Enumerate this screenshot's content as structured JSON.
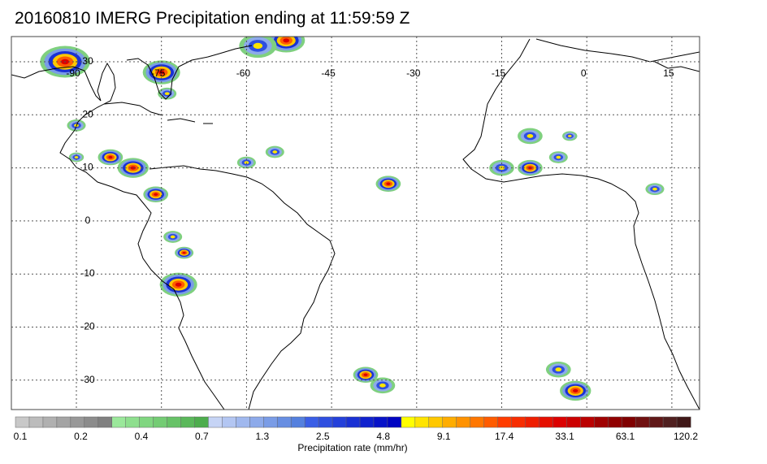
{
  "title": "20160810 IMERG Precipitation ending at 11:59:59 Z",
  "map": {
    "lon_labels": [
      "-90",
      "-75",
      "-60",
      "-45",
      "-30",
      "-15",
      "0",
      "15"
    ],
    "lat_labels": [
      "30",
      "20",
      "10",
      "0",
      "-10",
      "-20",
      "-30"
    ],
    "gridlines": "dotted"
  },
  "colorbar": {
    "title": "Precipitation rate (mm/hr)",
    "tick_labels": [
      "0.1",
      "0.2",
      "0.4",
      "0.7",
      "1.3",
      "2.5",
      "4.8",
      "9.1",
      "17.4",
      "33.1",
      "63.1",
      "120.2"
    ],
    "colors": [
      "#c8c8c8",
      "#bcbcbc",
      "#b0b0b0",
      "#a4a4a4",
      "#989898",
      "#8c8c8c",
      "#808080",
      "#9be89b",
      "#8edf8e",
      "#80d680",
      "#74cc74",
      "#67c267",
      "#5ab85a",
      "#4dad4d",
      "#c6d4f5",
      "#b3c6f2",
      "#a0b8ee",
      "#8daaea",
      "#7a9ce6",
      "#678ee2",
      "#5480de",
      "#3a5ee6",
      "#2f4fe0",
      "#2440da",
      "#1a31d4",
      "#1022ce",
      "#0813c8",
      "#0004c2",
      "#ffff00",
      "#ffe400",
      "#ffc800",
      "#ffad00",
      "#ff9200",
      "#ff7700",
      "#ff5c00",
      "#ff3c00",
      "#f72d00",
      "#ee1e00",
      "#e50f00",
      "#dc0000",
      "#cc0000",
      "#bb0000",
      "#a00000",
      "#900000",
      "#800000",
      "#701010",
      "#601818",
      "#502020",
      "#401818"
    ]
  },
  "precip_cells": [
    {
      "lon": -92,
      "lat": 30,
      "r": 4,
      "level": "heavy"
    },
    {
      "lon": -75,
      "lat": 28,
      "r": 3,
      "level": "heavy"
    },
    {
      "lon": -53,
      "lat": 34,
      "r": 3,
      "level": "heavy"
    },
    {
      "lon": -58,
      "lat": 33,
      "r": 3,
      "level": "moderate"
    },
    {
      "lon": -74,
      "lat": 24,
      "r": 1.5,
      "level": "moderate"
    },
    {
      "lon": -90,
      "lat": 18,
      "r": 1.5,
      "level": "moderate"
    },
    {
      "lon": -84,
      "lat": 12,
      "r": 2,
      "level": "heavy"
    },
    {
      "lon": -80,
      "lat": 10,
      "r": 2.5,
      "level": "heavy"
    },
    {
      "lon": -76,
      "lat": 5,
      "r": 2,
      "level": "heavy"
    },
    {
      "lon": -60,
      "lat": 11,
      "r": 1.5,
      "level": "moderate"
    },
    {
      "lon": -55,
      "lat": 13,
      "r": 1.5,
      "level": "moderate"
    },
    {
      "lon": -35,
      "lat": 7,
      "r": 2,
      "level": "heavy"
    },
    {
      "lon": -15,
      "lat": 10,
      "r": 2,
      "level": "moderate"
    },
    {
      "lon": -10,
      "lat": 10,
      "r": 2,
      "level": "heavy"
    },
    {
      "lon": -10,
      "lat": 16,
      "r": 2,
      "level": "moderate"
    },
    {
      "lon": -5,
      "lat": 12,
      "r": 1.5,
      "level": "moderate"
    },
    {
      "lon": -3,
      "lat": 16,
      "r": 1.2,
      "level": "moderate"
    },
    {
      "lon": 12,
      "lat": 6,
      "r": 1.5,
      "level": "moderate"
    },
    {
      "lon": -73,
      "lat": -3,
      "r": 1.5,
      "level": "moderate"
    },
    {
      "lon": -71,
      "lat": -6,
      "r": 1.5,
      "level": "heavy"
    },
    {
      "lon": -72,
      "lat": -12,
      "r": 3,
      "level": "heavy"
    },
    {
      "lon": -39,
      "lat": -29,
      "r": 2,
      "level": "heavy"
    },
    {
      "lon": -36,
      "lat": -31,
      "r": 2,
      "level": "moderate"
    },
    {
      "lon": -5,
      "lat": -28,
      "r": 2,
      "level": "moderate"
    },
    {
      "lon": -2,
      "lat": -32,
      "r": 2.5,
      "level": "heavy"
    },
    {
      "lon": -90,
      "lat": 12,
      "r": 1.2,
      "level": "moderate"
    }
  ]
}
